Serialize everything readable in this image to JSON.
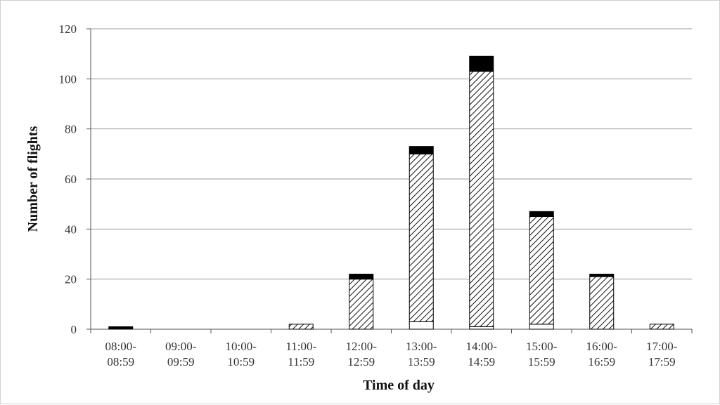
{
  "chart_data": {
    "type": "bar",
    "stacked": true,
    "title": "",
    "xlabel": "Time of day",
    "ylabel": "Number of flights",
    "ylim": [
      0,
      120
    ],
    "yticks": [
      0,
      20,
      40,
      60,
      80,
      100,
      120
    ],
    "grid": true,
    "legend": "none",
    "categories": [
      [
        "08:00-",
        "08:59"
      ],
      [
        "09:00-",
        "09:59"
      ],
      [
        "10:00-",
        "10:59"
      ],
      [
        "11:00-",
        "11:59"
      ],
      [
        "12:00-",
        "12:59"
      ],
      [
        "13:00-",
        "13:59"
      ],
      [
        "14:00-",
        "14:59"
      ],
      [
        "15:00-",
        "15:59"
      ],
      [
        "16:00-",
        "16:59"
      ],
      [
        "17:00-",
        "17:59"
      ]
    ],
    "series": [
      {
        "fill": "white",
        "color": "#ffffff",
        "values": [
          0,
          0,
          0,
          0,
          0,
          3,
          1,
          2,
          0,
          0
        ]
      },
      {
        "fill": "hatched",
        "color": "#000000",
        "values": [
          0,
          0,
          0,
          2,
          20,
          67,
          102,
          43,
          21,
          2
        ]
      },
      {
        "fill": "solid",
        "color": "#000000",
        "values": [
          1,
          0,
          0,
          0,
          2,
          3,
          6,
          2,
          1,
          0
        ]
      }
    ]
  }
}
